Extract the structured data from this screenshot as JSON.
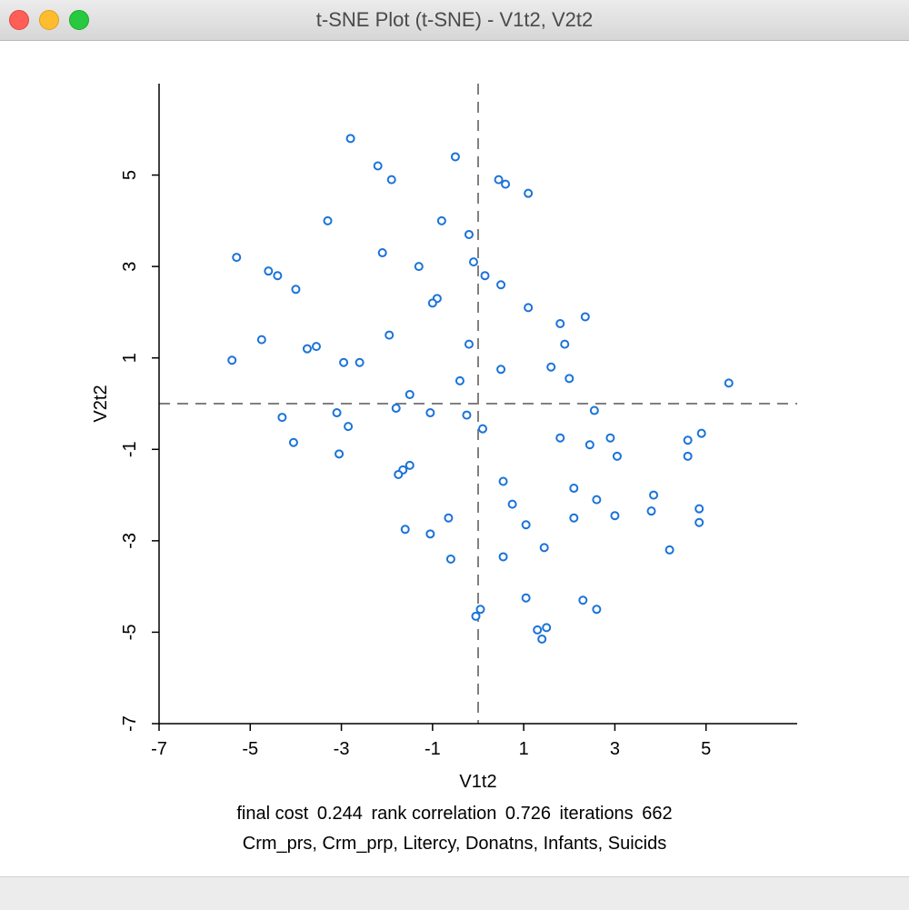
{
  "window": {
    "title": "t-SNE Plot (t-SNE) - V1t2, V2t2"
  },
  "footer": {
    "stats": [
      {
        "label": "final cost",
        "value": "0.244"
      },
      {
        "label": "rank correlation",
        "value": "0.726"
      },
      {
        "label": "iterations",
        "value": "662"
      }
    ],
    "variables": "Crm_prs, Crm_prp, Litercy, Donatns, Infants, Suicids"
  },
  "chart_data": {
    "type": "scatter",
    "xlabel": "V1t2",
    "ylabel": "V2t2",
    "xlim": [
      -7,
      7
    ],
    "ylim": [
      -7,
      7
    ],
    "xticks": [
      -7,
      -5,
      -3,
      -1,
      1,
      3,
      5
    ],
    "yticks": [
      -7,
      -5,
      -3,
      -1,
      1,
      3,
      5
    ],
    "reference_lines": {
      "x": 0,
      "y": 0
    },
    "marker_color": "#1a73d9",
    "points": [
      [
        -2.8,
        5.8
      ],
      [
        -0.5,
        5.4
      ],
      [
        -2.2,
        5.2
      ],
      [
        -1.9,
        4.9
      ],
      [
        0.45,
        4.9
      ],
      [
        0.6,
        4.8
      ],
      [
        1.1,
        4.6
      ],
      [
        -3.3,
        4.0
      ],
      [
        -0.8,
        4.0
      ],
      [
        -0.2,
        3.7
      ],
      [
        -2.1,
        3.3
      ],
      [
        -5.3,
        3.2
      ],
      [
        -0.1,
        3.1
      ],
      [
        -1.3,
        3.0
      ],
      [
        -4.6,
        2.9
      ],
      [
        -4.4,
        2.8
      ],
      [
        0.15,
        2.8
      ],
      [
        0.5,
        2.6
      ],
      [
        -4.0,
        2.5
      ],
      [
        -0.9,
        2.3
      ],
      [
        -1.0,
        2.2
      ],
      [
        1.1,
        2.1
      ],
      [
        2.35,
        1.9
      ],
      [
        1.8,
        1.75
      ],
      [
        -1.95,
        1.5
      ],
      [
        -4.75,
        1.4
      ],
      [
        -0.2,
        1.3
      ],
      [
        1.9,
        1.3
      ],
      [
        -3.55,
        1.25
      ],
      [
        -3.75,
        1.2
      ],
      [
        -5.4,
        0.95
      ],
      [
        -2.95,
        0.9
      ],
      [
        -2.6,
        0.9
      ],
      [
        1.6,
        0.8
      ],
      [
        0.5,
        0.75
      ],
      [
        2.0,
        0.55
      ],
      [
        -0.4,
        0.5
      ],
      [
        5.5,
        0.45
      ],
      [
        -1.5,
        0.2
      ],
      [
        -1.8,
        -0.1
      ],
      [
        -4.3,
        -0.3
      ],
      [
        -3.1,
        -0.2
      ],
      [
        -1.05,
        -0.2
      ],
      [
        -0.25,
        -0.25
      ],
      [
        2.55,
        -0.15
      ],
      [
        -2.85,
        -0.5
      ],
      [
        0.1,
        -0.55
      ],
      [
        4.9,
        -0.65
      ],
      [
        2.9,
        -0.75
      ],
      [
        1.8,
        -0.75
      ],
      [
        4.6,
        -0.8
      ],
      [
        -4.05,
        -0.85
      ],
      [
        2.45,
        -0.9
      ],
      [
        -3.05,
        -1.1
      ],
      [
        3.05,
        -1.15
      ],
      [
        4.6,
        -1.15
      ],
      [
        -1.5,
        -1.35
      ],
      [
        -1.65,
        -1.45
      ],
      [
        -1.75,
        -1.55
      ],
      [
        0.55,
        -1.7
      ],
      [
        2.1,
        -1.85
      ],
      [
        3.85,
        -2.0
      ],
      [
        2.6,
        -2.1
      ],
      [
        0.75,
        -2.2
      ],
      [
        4.85,
        -2.3
      ],
      [
        3.8,
        -2.35
      ],
      [
        3.0,
        -2.45
      ],
      [
        -0.65,
        -2.5
      ],
      [
        2.1,
        -2.5
      ],
      [
        4.85,
        -2.6
      ],
      [
        1.05,
        -2.65
      ],
      [
        -1.6,
        -2.75
      ],
      [
        -1.05,
        -2.85
      ],
      [
        1.45,
        -3.15
      ],
      [
        4.2,
        -3.2
      ],
      [
        -0.6,
        -3.4
      ],
      [
        0.55,
        -3.35
      ],
      [
        1.05,
        -4.25
      ],
      [
        2.3,
        -4.3
      ],
      [
        2.6,
        -4.5
      ],
      [
        0.05,
        -4.5
      ],
      [
        -0.05,
        -4.65
      ],
      [
        1.5,
        -4.9
      ],
      [
        1.3,
        -4.95
      ],
      [
        1.4,
        -5.15
      ]
    ]
  }
}
